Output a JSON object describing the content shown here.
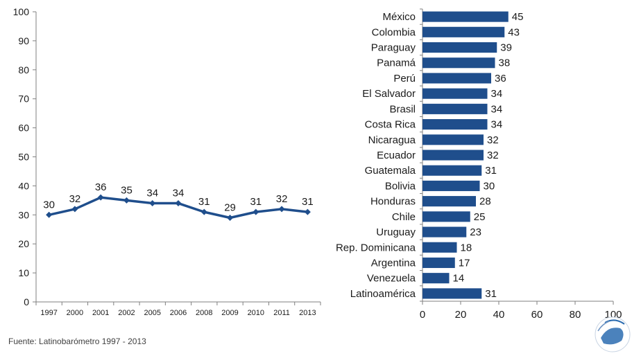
{
  "source": "Fuente: Latinobarómetro 1997 - 2013",
  "colors": {
    "series": "#1f4e8c",
    "axis": "#7f7f7f",
    "text": "#1a1a1a"
  },
  "chart_data": [
    {
      "type": "line",
      "categories": [
        "1997",
        "2000",
        "2001",
        "2002",
        "2005",
        "2006",
        "2008",
        "2009",
        "2010",
        "2011",
        "2013"
      ],
      "values": [
        30,
        32,
        36,
        35,
        34,
        34,
        31,
        29,
        31,
        32,
        31
      ],
      "ylim": [
        0,
        100
      ],
      "yticks": [
        0,
        10,
        20,
        30,
        40,
        50,
        60,
        70,
        80,
        90,
        100
      ],
      "grid": false,
      "data_labels": true
    },
    {
      "type": "bar",
      "orientation": "horizontal",
      "categories": [
        "México",
        "Colombia",
        "Paraguay",
        "Panamá",
        "Perú",
        "El Salvador",
        "Brasil",
        "Costa Rica",
        "Nicaragua",
        "Ecuador",
        "Guatemala",
        "Bolivia",
        "Honduras",
        "Chile",
        "Uruguay",
        "Rep. Dominicana",
        "Argentina",
        "Venezuela",
        "Latinoamérica"
      ],
      "values": [
        45,
        43,
        39,
        38,
        36,
        34,
        34,
        34,
        32,
        32,
        31,
        30,
        28,
        25,
        23,
        18,
        17,
        14,
        31
      ],
      "xlim": [
        0,
        100
      ],
      "xticks": [
        0,
        20,
        40,
        60,
        80,
        100
      ],
      "grid": false,
      "data_labels": true
    }
  ]
}
